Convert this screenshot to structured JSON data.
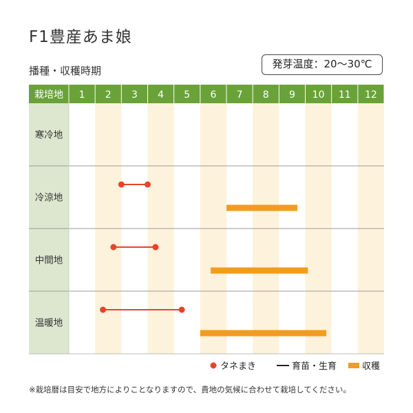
{
  "title": "F1豊産あま娘",
  "subtitle": "播種・収穫時期",
  "temperature_box": "発芽温度：20～30℃",
  "footnote": "※栽培暦は目安で地方によりことなりますので、貴地の気候に合わせて栽培してください。",
  "colors": {
    "header_green": "#6aa23a",
    "region_col": "#dde7cf",
    "stripe": "#fdf2dc",
    "sowing": "#e8432a",
    "harvest": "#f29c1f",
    "grid_line": "#9a9a9a"
  },
  "chart_data": {
    "type": "table",
    "header_label": "栽培地",
    "months": [
      "1",
      "2",
      "3",
      "4",
      "5",
      "6",
      "7",
      "8",
      "9",
      "10",
      "11",
      "12"
    ],
    "regions": [
      {
        "name": "寒冷地",
        "sowing": null,
        "harvest": null
      },
      {
        "name": "冷涼地",
        "sowing": [
          3.0,
          4.0
        ],
        "harvest": [
          7.0,
          9.7
        ]
      },
      {
        "name": "中間地",
        "sowing": [
          2.7,
          4.3
        ],
        "harvest": [
          6.4,
          10.1
        ]
      },
      {
        "name": "温暖地",
        "sowing": [
          2.3,
          5.3
        ],
        "harvest": [
          6.0,
          10.8
        ]
      }
    ],
    "legend": [
      {
        "label": "タネまき",
        "type": "sowing"
      },
      {
        "label": "育苗・生育",
        "type": "growing"
      },
      {
        "label": "収穫",
        "type": "harvest"
      }
    ]
  }
}
